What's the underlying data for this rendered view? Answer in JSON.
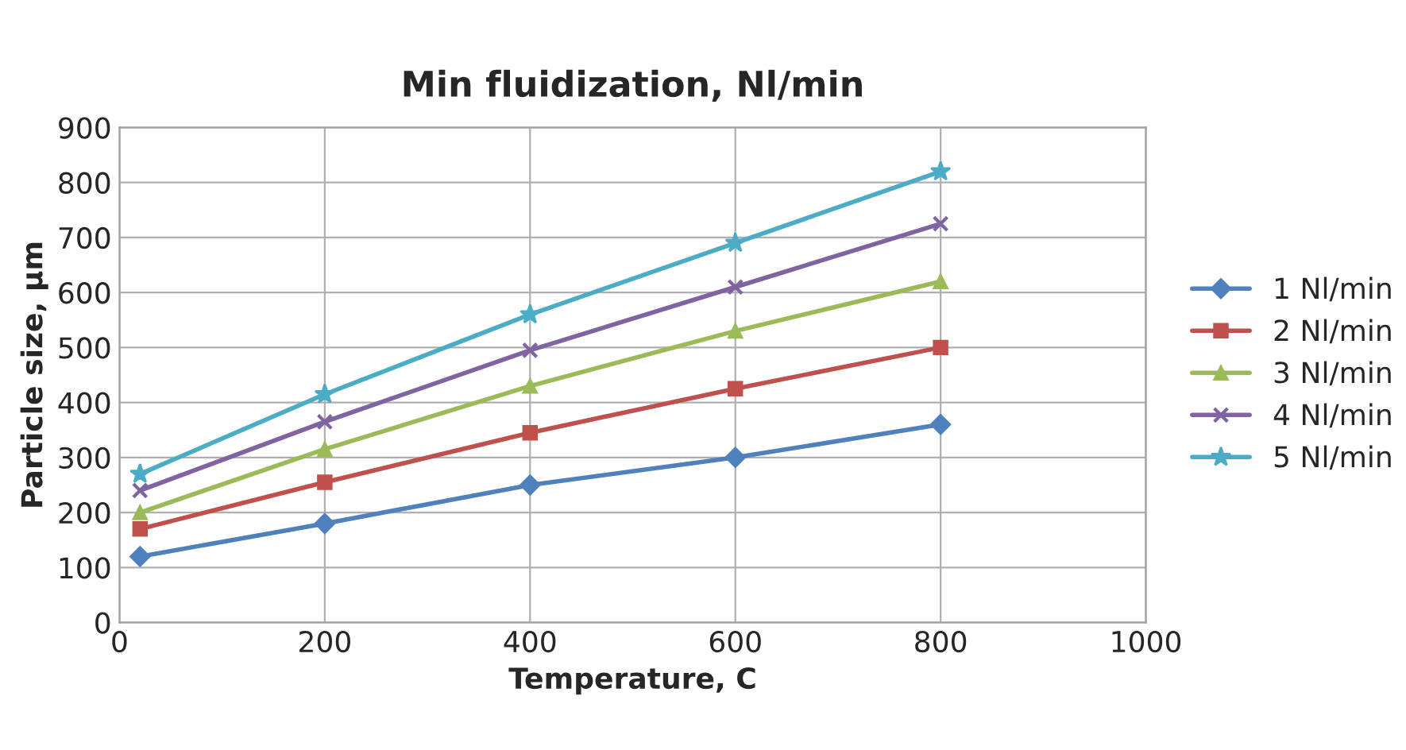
{
  "chart_data": {
    "type": "line",
    "title": "Min fluidization, Nl/min",
    "xlabel": "Temperature, C",
    "ylabel": "Particle size, µm",
    "x": [
      20,
      200,
      400,
      600,
      800
    ],
    "series": [
      {
        "name": "1 Nl/min",
        "color": "#4f81bd",
        "marker": "diamond",
        "values": [
          120,
          180,
          250,
          300,
          360
        ]
      },
      {
        "name": "2 Nl/min",
        "color": "#c0504d",
        "marker": "square",
        "values": [
          170,
          255,
          345,
          425,
          500
        ]
      },
      {
        "name": "3 Nl/min",
        "color": "#9bbb59",
        "marker": "triangle",
        "values": [
          200,
          315,
          430,
          530,
          620
        ]
      },
      {
        "name": "4 Nl/min",
        "color": "#8064a2",
        "marker": "cross",
        "values": [
          240,
          365,
          495,
          610,
          725
        ]
      },
      {
        "name": "5 Nl/min",
        "color": "#4bacc6",
        "marker": "star",
        "values": [
          270,
          415,
          560,
          690,
          820
        ]
      }
    ],
    "xlim": [
      0,
      1000
    ],
    "xticks": [
      0,
      200,
      400,
      600,
      800,
      1000
    ],
    "ylim": [
      0,
      900
    ],
    "yticks": [
      0,
      100,
      200,
      300,
      400,
      500,
      600,
      700,
      800,
      900
    ],
    "grid": true,
    "legend": "right",
    "line_style": "solid"
  }
}
